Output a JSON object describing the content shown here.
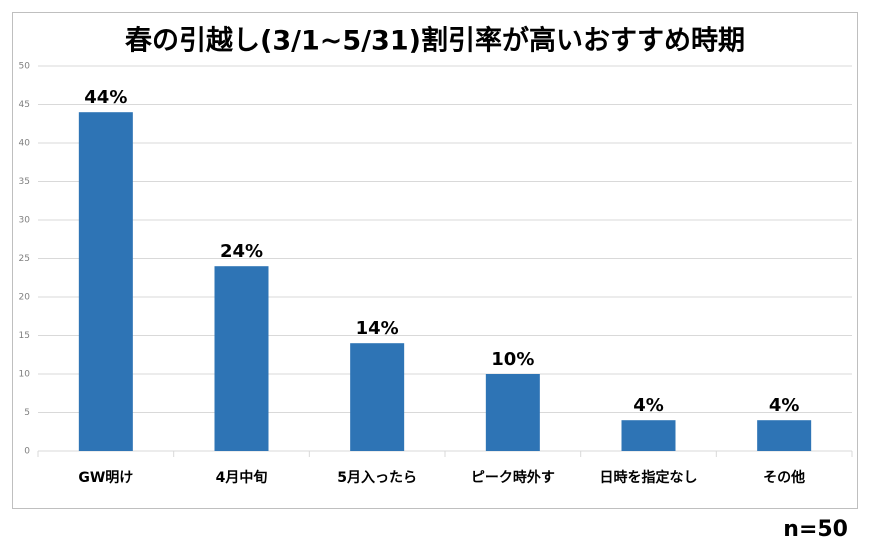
{
  "chart_data": {
    "type": "bar",
    "title": "春の引越し(3/1~5/31)割引率が高いおすすめ時期",
    "categories": [
      "GW明け",
      "4月中旬",
      "5月入ったら",
      "ピーク時外す",
      "日時を指定なし",
      "その他"
    ],
    "values": [
      44,
      24,
      14,
      10,
      4,
      4
    ],
    "value_labels": [
      "44%",
      "24%",
      "14%",
      "10%",
      "4%",
      "4%"
    ],
    "color": "#2e74b5",
    "ylim": [
      0,
      50
    ],
    "yticks": [
      0,
      5,
      10,
      15,
      20,
      25,
      30,
      35,
      40,
      45,
      50
    ],
    "grid": true,
    "annotation": "n=50"
  }
}
